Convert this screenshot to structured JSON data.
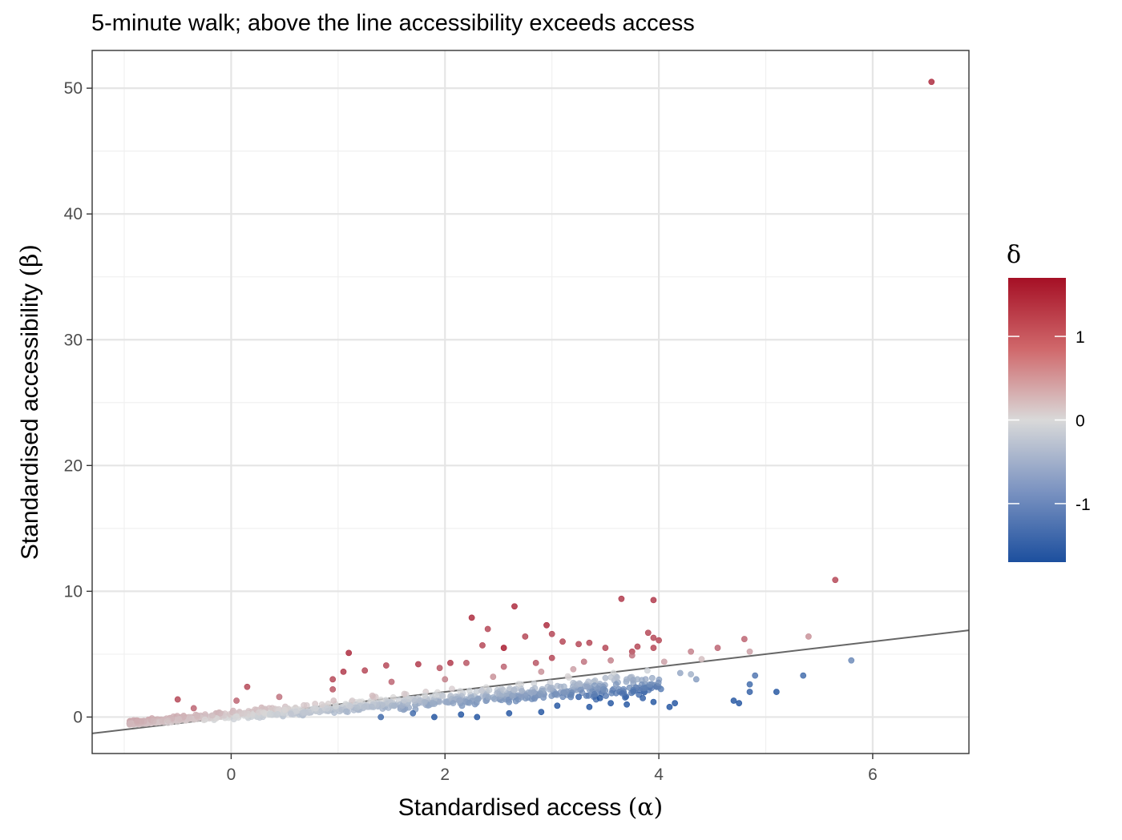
{
  "chart_data": {
    "type": "scatter",
    "title": "5-minute walk; above the line accessibility exceeds access",
    "xlabel": "Standardised access",
    "xlabel_symbol": "(α)",
    "ylabel": "Standardised accessibility",
    "ylabel_symbol": "(β)",
    "xlim": [
      -1.3,
      6.9
    ],
    "ylim": [
      -2.9,
      53.0
    ],
    "x_ticks": [
      0,
      2,
      4,
      6
    ],
    "x_tick_labels": [
      "0",
      "2",
      "4",
      "6"
    ],
    "y_ticks": [
      0,
      10,
      20,
      30,
      40,
      50
    ],
    "y_tick_labels": [
      "0",
      "10",
      "20",
      "30",
      "40",
      "50"
    ],
    "grid": true,
    "reference_line": {
      "slope": 1,
      "intercept": 0,
      "color": "#666666"
    },
    "legend": {
      "title": "δ",
      "position": "right",
      "type": "colorbar",
      "range": [
        -1.7,
        1.7
      ],
      "ticks": [
        1,
        0,
        -1
      ],
      "tick_labels": [
        "1",
        "0",
        "-1"
      ],
      "colors": {
        "high": "#a50f25",
        "mid": "#d9d9d9",
        "low": "#1c4f9e"
      }
    },
    "points": [
      [
        6.55,
        50.5,
        1.2
      ],
      [
        5.65,
        10.9,
        1.0
      ],
      [
        3.65,
        9.4,
        1.1
      ],
      [
        3.95,
        9.3,
        1.1
      ],
      [
        2.65,
        8.8,
        1.2
      ],
      [
        2.25,
        7.9,
        1.2
      ],
      [
        2.95,
        7.3,
        1.2
      ],
      [
        2.4,
        7.0,
        1.0
      ],
      [
        3.9,
        6.7,
        1.0
      ],
      [
        3.95,
        6.3,
        1.0
      ],
      [
        4.0,
        6.1,
        1.0
      ],
      [
        4.8,
        6.2,
        0.8
      ],
      [
        5.4,
        6.4,
        0.5
      ],
      [
        2.75,
        6.4,
        1.0
      ],
      [
        3.0,
        6.6,
        1.0
      ],
      [
        3.1,
        6.0,
        1.0
      ],
      [
        3.25,
        5.8,
        1.0
      ],
      [
        3.35,
        5.9,
        1.0
      ],
      [
        3.5,
        5.5,
        1.0
      ],
      [
        2.55,
        5.5,
        1.3
      ],
      [
        2.35,
        5.7,
        1.0
      ],
      [
        3.8,
        5.6,
        1.0
      ],
      [
        3.75,
        5.2,
        1.0
      ],
      [
        3.95,
        5.5,
        1.0
      ],
      [
        4.55,
        5.5,
        0.8
      ],
      [
        4.3,
        5.2,
        0.6
      ],
      [
        4.85,
        5.2,
        0.4
      ],
      [
        4.4,
        4.6,
        0.2
      ],
      [
        1.1,
        5.1,
        1.2
      ],
      [
        1.75,
        4.2,
        1.1
      ],
      [
        2.05,
        4.3,
        1.1
      ],
      [
        1.45,
        4.1,
        1.0
      ],
      [
        1.95,
        3.9,
        0.9
      ],
      [
        1.05,
        3.6,
        1.1
      ],
      [
        1.25,
        3.7,
        1.0
      ],
      [
        0.95,
        3.0,
        1.0
      ],
      [
        2.2,
        4.3,
        0.9
      ],
      [
        2.55,
        4.0,
        0.8
      ],
      [
        2.85,
        4.3,
        0.9
      ],
      [
        3.0,
        4.7,
        1.0
      ],
      [
        3.3,
        4.4,
        0.7
      ],
      [
        3.55,
        4.5,
        0.6
      ],
      [
        3.75,
        4.9,
        0.7
      ],
      [
        4.05,
        4.4,
        0.4
      ],
      [
        4.2,
        3.5,
        -0.5
      ],
      [
        4.3,
        3.4,
        -0.4
      ],
      [
        4.35,
        3.0,
        -0.6
      ],
      [
        4.9,
        3.3,
        -1.0
      ],
      [
        4.85,
        2.6,
        -1.1
      ],
      [
        4.85,
        2.0,
        -1.2
      ],
      [
        5.1,
        2.0,
        -1.3
      ],
      [
        5.35,
        3.3,
        -1.1
      ],
      [
        5.8,
        4.5,
        -0.8
      ],
      [
        4.7,
        1.3,
        -1.3
      ],
      [
        4.75,
        1.1,
        -1.4
      ],
      [
        4.15,
        1.1,
        -1.4
      ],
      [
        4.1,
        0.8,
        -1.4
      ],
      [
        3.95,
        1.2,
        -1.3
      ],
      [
        3.85,
        1.5,
        -1.2
      ],
      [
        3.45,
        1.5,
        -1.3
      ],
      [
        3.35,
        0.8,
        -1.4
      ],
      [
        3.25,
        1.6,
        -1.2
      ],
      [
        3.55,
        1.1,
        -1.3
      ],
      [
        3.7,
        1.0,
        -1.3
      ],
      [
        3.6,
        2.6,
        -0.6
      ],
      [
        3.4,
        2.5,
        -0.6
      ],
      [
        3.8,
        3.0,
        -0.4
      ],
      [
        3.5,
        3.1,
        -0.3
      ],
      [
        0.15,
        2.4,
        1.0
      ],
      [
        -0.5,
        1.4,
        1.0
      ],
      [
        -0.35,
        0.7,
        0.8
      ],
      [
        0.05,
        1.3,
        0.8
      ],
      [
        0.45,
        1.6,
        0.7
      ],
      [
        0.95,
        2.2,
        0.9
      ],
      [
        1.5,
        2.8,
        0.8
      ],
      [
        2.0,
        3.0,
        0.6
      ],
      [
        2.45,
        3.2,
        0.5
      ],
      [
        2.9,
        3.6,
        0.5
      ],
      [
        3.2,
        3.8,
        0.4
      ],
      [
        1.9,
        0.0,
        -1.4
      ],
      [
        2.3,
        0.0,
        -1.4
      ],
      [
        2.6,
        0.3,
        -1.4
      ],
      [
        2.9,
        0.4,
        -1.4
      ],
      [
        3.05,
        0.9,
        -1.3
      ],
      [
        2.15,
        0.2,
        -1.4
      ],
      [
        1.4,
        0.0,
        -1.1
      ],
      [
        1.7,
        0.3,
        -1.1
      ]
    ],
    "bands": [
      {
        "xmin": -0.95,
        "xmax": 4.05,
        "count": 900,
        "y_slope": 0.62,
        "y_intercept": 0.1,
        "spread_up": 1.6,
        "spread_down": 1.1
      }
    ]
  }
}
